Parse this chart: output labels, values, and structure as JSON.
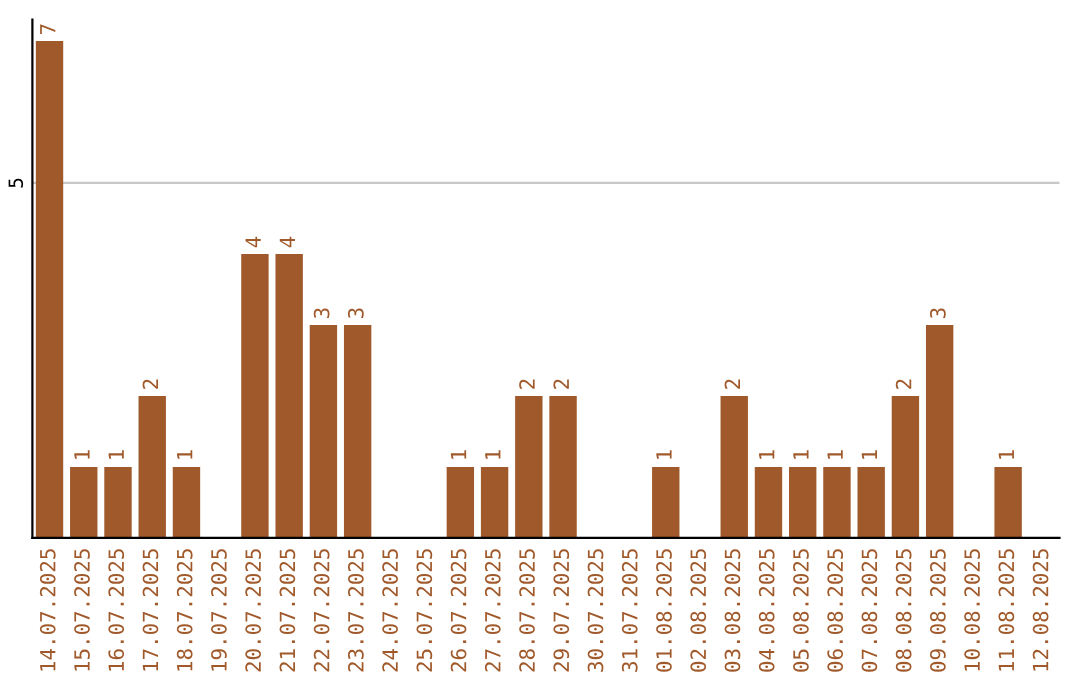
{
  "chart_data": {
    "type": "bar",
    "categories": [
      "14.07.2025",
      "15.07.2025",
      "16.07.2025",
      "17.07.2025",
      "18.07.2025",
      "19.07.2025",
      "20.07.2025",
      "21.07.2025",
      "22.07.2025",
      "23.07.2025",
      "24.07.2025",
      "25.07.2025",
      "26.07.2025",
      "27.07.2025",
      "28.07.2025",
      "29.07.2025",
      "30.07.2025",
      "31.07.2025",
      "01.08.2025",
      "02.08.2025",
      "03.08.2025",
      "04.08.2025",
      "05.08.2025",
      "06.08.2025",
      "07.08.2025",
      "08.08.2025",
      "09.08.2025",
      "10.08.2025",
      "11.08.2025",
      "12.08.2025"
    ],
    "values": [
      7,
      1,
      1,
      2,
      1,
      0,
      4,
      4,
      3,
      3,
      0,
      0,
      1,
      1,
      2,
      2,
      0,
      0,
      1,
      0,
      2,
      1,
      1,
      1,
      1,
      2,
      3,
      0,
      1,
      0
    ],
    "value_labels": [
      "7",
      "1",
      "1",
      "2",
      "1",
      null,
      "4",
      "4",
      "3",
      "3",
      null,
      null,
      "1",
      "1",
      "2",
      "2",
      null,
      null,
      "1",
      null,
      "2",
      "1",
      "1",
      "1",
      "1",
      "2",
      "3",
      null,
      "1",
      null
    ],
    "color": "#a0592a",
    "ylim": [
      0,
      7.3
    ],
    "yticks": [
      5
    ],
    "grid": "y"
  }
}
